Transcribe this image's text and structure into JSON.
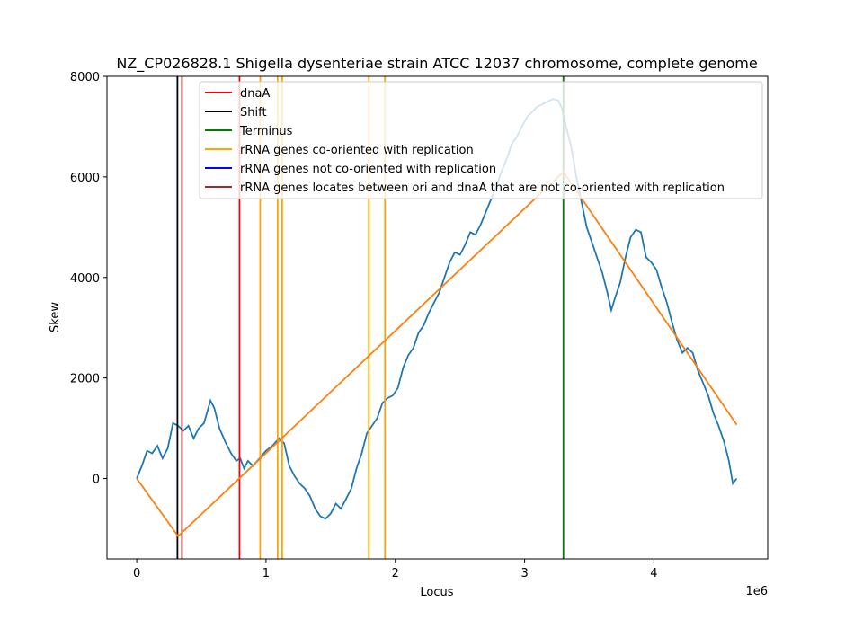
{
  "chart_data": {
    "type": "line",
    "title": "NZ_CP026828.1 Shigella dysenteriae strain ATCC 12037 chromosome, complete genome",
    "xlabel": "Locus",
    "ylabel": "Skew",
    "x_offset_text": "1e6",
    "xlim": [
      -230000,
      4880000
    ],
    "ylim": [
      -1600,
      8000
    ],
    "x_ticks": [
      0,
      1000000,
      2000000,
      3000000,
      4000000
    ],
    "x_tick_labels": [
      "0",
      "1",
      "2",
      "3",
      "4"
    ],
    "y_ticks": [
      0,
      2000,
      4000,
      6000,
      8000
    ],
    "y_tick_labels": [
      "0",
      "2000",
      "4000",
      "6000",
      "8000"
    ],
    "legend_position": "upper-right",
    "skew_series": {
      "name": "",
      "color": "#1f77b4",
      "points": [
        [
          0,
          0
        ],
        [
          40000,
          250
        ],
        [
          80000,
          550
        ],
        [
          120000,
          500
        ],
        [
          160000,
          650
        ],
        [
          200000,
          400
        ],
        [
          240000,
          600
        ],
        [
          280000,
          1100
        ],
        [
          320000,
          1050
        ],
        [
          360000,
          950
        ],
        [
          400000,
          1050
        ],
        [
          440000,
          800
        ],
        [
          480000,
          1000
        ],
        [
          520000,
          1100
        ],
        [
          570000,
          1550
        ],
        [
          600000,
          1400
        ],
        [
          640000,
          1000
        ],
        [
          690000,
          700
        ],
        [
          730000,
          500
        ],
        [
          770000,
          350
        ],
        [
          800000,
          400
        ],
        [
          830000,
          200
        ],
        [
          860000,
          350
        ],
        [
          900000,
          250
        ],
        [
          950000,
          400
        ],
        [
          1000000,
          550
        ],
        [
          1050000,
          650
        ],
        [
          1100000,
          800
        ],
        [
          1140000,
          700
        ],
        [
          1180000,
          250
        ],
        [
          1220000,
          50
        ],
        [
          1260000,
          -100
        ],
        [
          1300000,
          -200
        ],
        [
          1340000,
          -350
        ],
        [
          1380000,
          -600
        ],
        [
          1420000,
          -750
        ],
        [
          1460000,
          -800
        ],
        [
          1500000,
          -700
        ],
        [
          1540000,
          -500
        ],
        [
          1580000,
          -600
        ],
        [
          1620000,
          -400
        ],
        [
          1660000,
          -200
        ],
        [
          1700000,
          200
        ],
        [
          1740000,
          500
        ],
        [
          1780000,
          900
        ],
        [
          1820000,
          1050
        ],
        [
          1860000,
          1200
        ],
        [
          1900000,
          1500
        ],
        [
          1940000,
          1600
        ],
        [
          1980000,
          1650
        ],
        [
          2020000,
          1800
        ],
        [
          2060000,
          2200
        ],
        [
          2100000,
          2450
        ],
        [
          2140000,
          2600
        ],
        [
          2180000,
          2900
        ],
        [
          2220000,
          3050
        ],
        [
          2260000,
          3300
        ],
        [
          2300000,
          3500
        ],
        [
          2340000,
          3700
        ],
        [
          2380000,
          4000
        ],
        [
          2420000,
          4300
        ],
        [
          2460000,
          4500
        ],
        [
          2500000,
          4450
        ],
        [
          2540000,
          4650
        ],
        [
          2580000,
          4900
        ],
        [
          2620000,
          4850
        ],
        [
          2660000,
          5050
        ],
        [
          2700000,
          5300
        ],
        [
          2740000,
          5550
        ],
        [
          2780000,
          5800
        ],
        [
          2820000,
          6100
        ],
        [
          2860000,
          6350
        ],
        [
          2900000,
          6650
        ],
        [
          2940000,
          6800
        ],
        [
          2980000,
          7000
        ],
        [
          3020000,
          7200
        ],
        [
          3060000,
          7300
        ],
        [
          3100000,
          7400
        ],
        [
          3140000,
          7450
        ],
        [
          3180000,
          7500
        ],
        [
          3220000,
          7550
        ],
        [
          3260000,
          7520
        ],
        [
          3290000,
          7350
        ],
        [
          3320000,
          7000
        ],
        [
          3360000,
          6600
        ],
        [
          3400000,
          6000
        ],
        [
          3440000,
          5500
        ],
        [
          3480000,
          5000
        ],
        [
          3520000,
          4700
        ],
        [
          3560000,
          4400
        ],
        [
          3600000,
          4100
        ],
        [
          3640000,
          3700
        ],
        [
          3670000,
          3350
        ],
        [
          3700000,
          3600
        ],
        [
          3740000,
          3900
        ],
        [
          3780000,
          4400
        ],
        [
          3820000,
          4800
        ],
        [
          3860000,
          4950
        ],
        [
          3900000,
          4900
        ],
        [
          3940000,
          4400
        ],
        [
          3980000,
          4300
        ],
        [
          4020000,
          4150
        ],
        [
          4060000,
          3800
        ],
        [
          4100000,
          3500
        ],
        [
          4140000,
          3100
        ],
        [
          4180000,
          2750
        ],
        [
          4220000,
          2500
        ],
        [
          4260000,
          2600
        ],
        [
          4300000,
          2500
        ],
        [
          4340000,
          2150
        ],
        [
          4380000,
          1900
        ],
        [
          4420000,
          1650
        ],
        [
          4460000,
          1300
        ],
        [
          4500000,
          1050
        ],
        [
          4540000,
          750
        ],
        [
          4580000,
          350
        ],
        [
          4610000,
          -100
        ],
        [
          4640000,
          0
        ]
      ]
    },
    "fit_series": {
      "name": "",
      "color": "#ff7f0e",
      "points": [
        [
          0,
          0
        ],
        [
          320000,
          -1150
        ],
        [
          3300000,
          6100
        ],
        [
          4640000,
          1070
        ]
      ]
    },
    "vlines": [
      {
        "category": "dnaA",
        "x": 795000,
        "color": "#ff0000"
      },
      {
        "category": "Shift",
        "x": 315000,
        "color": "#000000"
      },
      {
        "category": "Terminus",
        "x": 3300000,
        "color": "#008000"
      },
      {
        "category": "rRNA genes co-oriented with replication",
        "x": 955000,
        "color": "#ffa500"
      },
      {
        "category": "rRNA genes co-oriented with replication",
        "x": 1090000,
        "color": "#ffa500"
      },
      {
        "category": "rRNA genes co-oriented with replication",
        "x": 1125000,
        "color": "#ffa500"
      },
      {
        "category": "rRNA genes co-oriented with replication",
        "x": 1795000,
        "color": "#ffa500"
      },
      {
        "category": "rRNA genes co-oriented with replication",
        "x": 1920000,
        "color": "#ffa500"
      },
      {
        "category": "rRNA genes locates between ori and dnaA that are not co-oriented with replication",
        "x": 350000,
        "color": "#a52a2a"
      }
    ],
    "legend": [
      {
        "label": "dnaA",
        "color": "#ff0000"
      },
      {
        "label": "Shift",
        "color": "#000000"
      },
      {
        "label": "Terminus",
        "color": "#008000"
      },
      {
        "label": "rRNA genes co-oriented with replication",
        "color": "#ffa500"
      },
      {
        "label": "rRNA genes not co-oriented with replication",
        "color": "#0000ff"
      },
      {
        "label": "rRNA genes locates between ori and dnaA that are not co-oriented with replication",
        "color": "#a52a2a"
      }
    ]
  }
}
